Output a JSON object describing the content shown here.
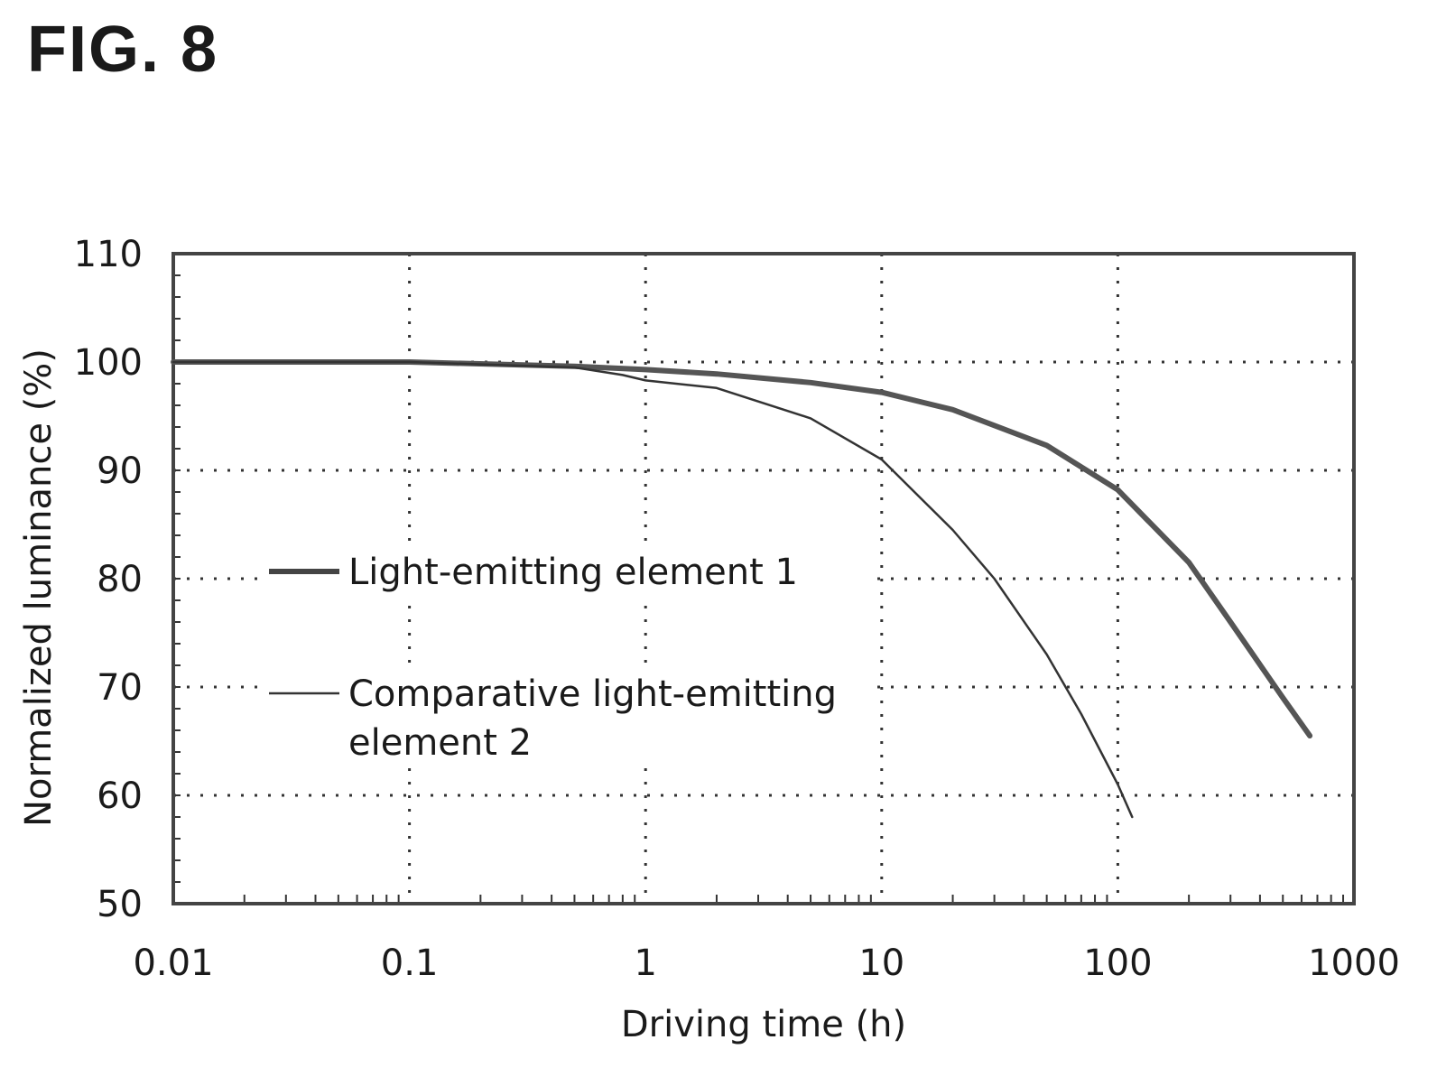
{
  "figure_label": "FIG. 8",
  "chart_data": {
    "type": "line",
    "xlabel": "Driving time (h)",
    "ylabel": "Normalized luminance (%)",
    "xscale": "log",
    "xlim": [
      0.01,
      1000
    ],
    "ylim": [
      50,
      110
    ],
    "x_ticks": [
      0.01,
      0.1,
      1,
      10,
      100,
      1000
    ],
    "x_tick_labels": [
      "0.01",
      "0.1",
      "1",
      "10",
      "100",
      "1000"
    ],
    "y_ticks": [
      50,
      60,
      70,
      80,
      90,
      100,
      110
    ],
    "y_tick_labels": [
      "50",
      "60",
      "70",
      "80",
      "90",
      "100",
      "110"
    ],
    "grid": "dotted",
    "legend_position": "center-left",
    "series": [
      {
        "name": "Light-emitting element 1",
        "line_weight": "thick",
        "x": [
          0.01,
          0.1,
          0.5,
          1,
          2,
          5,
          10,
          20,
          50,
          100,
          200,
          300,
          500,
          650
        ],
        "y": [
          100,
          100,
          99.6,
          99.3,
          98.9,
          98.1,
          97.2,
          95.6,
          92.3,
          88.2,
          81.5,
          76.0,
          69.0,
          65.5
        ]
      },
      {
        "name": "Comparative light-emitting element 2",
        "line_weight": "thin",
        "x": [
          0.01,
          0.1,
          0.5,
          0.8,
          1,
          2,
          5,
          10,
          20,
          30,
          50,
          70,
          100,
          115
        ],
        "y": [
          100,
          100,
          99.5,
          98.8,
          98.3,
          97.6,
          94.8,
          91.0,
          84.5,
          80.0,
          73.0,
          67.5,
          61.0,
          58.0
        ]
      }
    ],
    "legend_entries": [
      {
        "label_lines": [
          "Light-emitting element 1"
        ]
      },
      {
        "label_lines": [
          "Comparative light-emitting",
          "element 2"
        ]
      }
    ]
  }
}
